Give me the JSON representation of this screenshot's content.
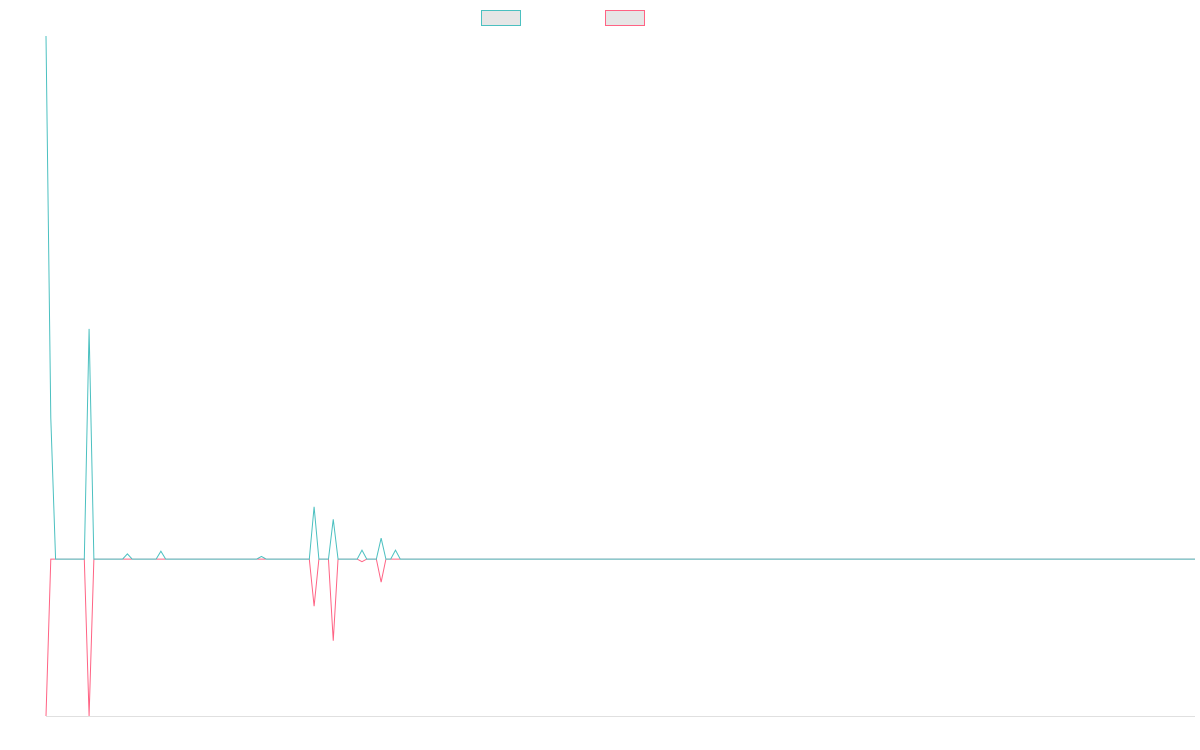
{
  "chart_data": {
    "type": "line",
    "x": [
      0,
      1,
      2,
      8,
      9,
      10,
      16,
      17,
      18,
      23,
      24,
      25,
      44,
      45,
      46,
      55,
      56,
      57,
      59,
      60,
      61,
      65,
      66,
      67,
      69,
      70,
      71,
      72,
      73,
      74,
      240
    ],
    "xlim": [
      0,
      240
    ],
    "ylim": [
      -3,
      10
    ],
    "series": [
      {
        "color": "#4bc0c0",
        "values": [
          10,
          2.7,
          0,
          0,
          4.4,
          0,
          0,
          0.1,
          0,
          0,
          0.15,
          0,
          0,
          0.05,
          0,
          0,
          1.0,
          0,
          0,
          0.76,
          0,
          0,
          0.17,
          0,
          0,
          0.4,
          0,
          0,
          0.17,
          0,
          0
        ]
      },
      {
        "color": "#ff6384",
        "values": [
          -3,
          0,
          0,
          0,
          -3,
          0,
          0,
          0,
          0,
          0,
          0,
          0,
          0,
          0,
          0,
          0,
          -0.9,
          0,
          0,
          -1.56,
          0,
          0,
          -0.05,
          0,
          0,
          -0.44,
          0,
          0,
          0,
          0,
          0
        ]
      }
    ]
  }
}
